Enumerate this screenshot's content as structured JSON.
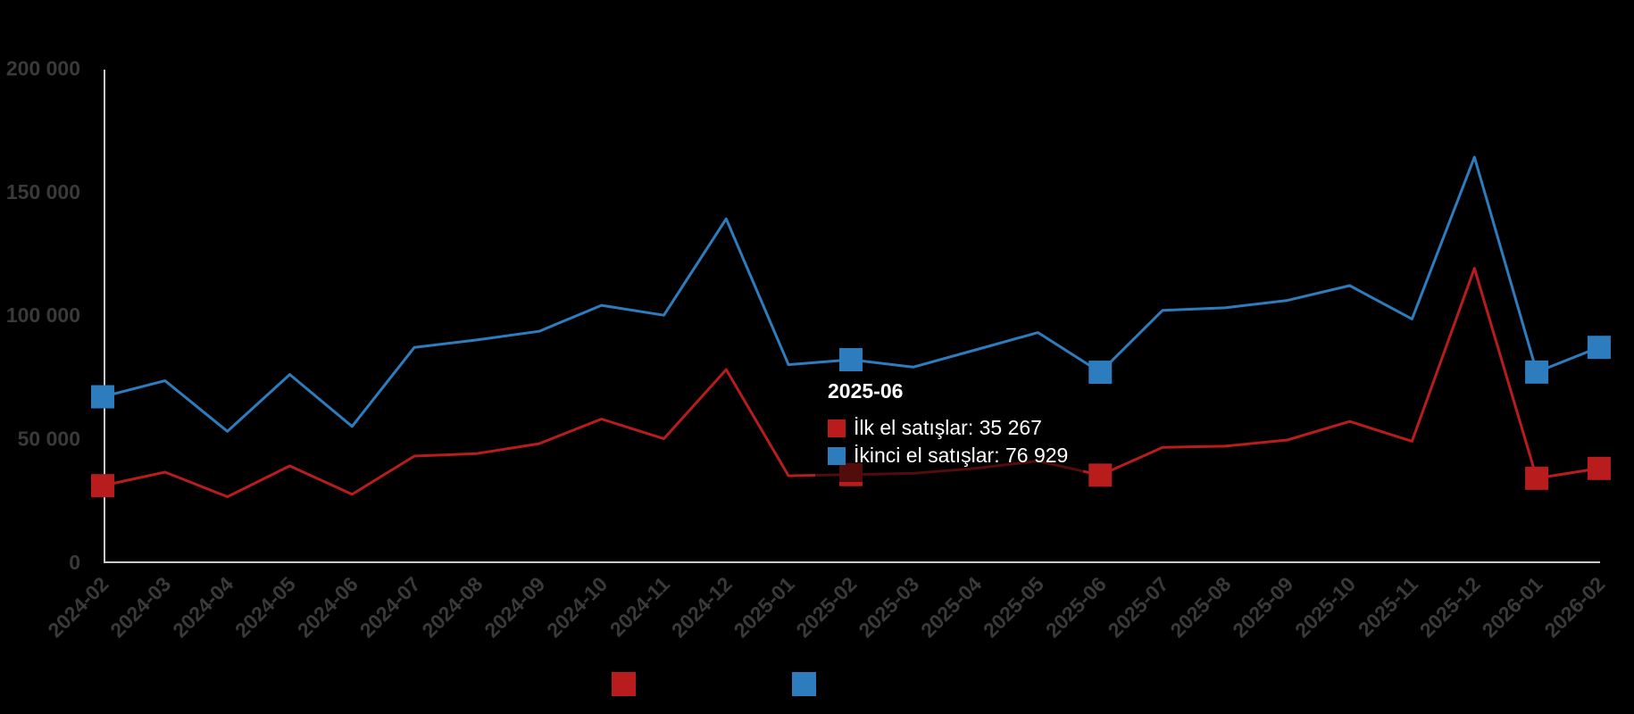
{
  "background_color": "#000000",
  "axis": {
    "line_color": "#c9c9cf",
    "tick_label_color": "#3a3a3a"
  },
  "chart_data": {
    "type": "line",
    "title": "",
    "xlabel": "",
    "ylabel": "",
    "ylim": [
      0,
      200000
    ],
    "grid": false,
    "legend_position": "bottom",
    "yticks": [
      0,
      50000,
      100000,
      150000,
      200000
    ],
    "ytick_labels": [
      "0",
      "50 000",
      "100 000",
      "150 000",
      "200 000"
    ],
    "categories": [
      "2024-02",
      "2024-03",
      "2024-04",
      "2024-05",
      "2024-06",
      "2024-07",
      "2024-08",
      "2024-09",
      "2024-10",
      "2024-11",
      "2024-12",
      "2025-01",
      "2025-02",
      "2025-03",
      "2025-04",
      "2025-05",
      "2025-06",
      "2025-07",
      "2025-08",
      "2025-09",
      "2025-10",
      "2025-11",
      "2025-12",
      "2026-01",
      "2026-02"
    ],
    "series": [
      {
        "name": "İlk el satışlar",
        "color": "#b81c1c",
        "values": [
          31000,
          36500,
          26500,
          39000,
          27500,
          43000,
          44000,
          48000,
          58000,
          50000,
          78000,
          35000,
          35500,
          36000,
          38000,
          41000,
          35267,
          46500,
          47000,
          49500,
          57000,
          49000,
          119000,
          34000,
          38000
        ]
      },
      {
        "name": "İkinci el satışlar",
        "color": "#2d7dbe",
        "values": [
          67000,
          73500,
          53000,
          76000,
          55000,
          87000,
          90000,
          93500,
          104000,
          100000,
          139000,
          80000,
          82000,
          79000,
          86000,
          93000,
          76929,
          102000,
          103000,
          106000,
          112000,
          98500,
          164000,
          77000,
          87000
        ]
      }
    ],
    "marker_indices": [
      0,
      12,
      16,
      23,
      24
    ],
    "hover_index": 16
  },
  "tooltip": {
    "title": "2025-06",
    "rows": [
      {
        "label": "İlk el satışlar",
        "value": "35 267",
        "color": "#b81c1c",
        "text": "İlk el satışlar: 35 267"
      },
      {
        "label": "İkinci el satışlar",
        "value": "76 929",
        "color": "#2d7dbe",
        "text": "İkinci el satışlar: 76 929"
      }
    ],
    "text_color": "#ffffff"
  },
  "legend": {
    "items": [
      {
        "series": "İlk el satışlar",
        "color": "#b81c1c",
        "label_visible": ""
      },
      {
        "series": "İkinci el satışlar",
        "color": "#2d7dbe",
        "label_visible": ""
      }
    ]
  }
}
